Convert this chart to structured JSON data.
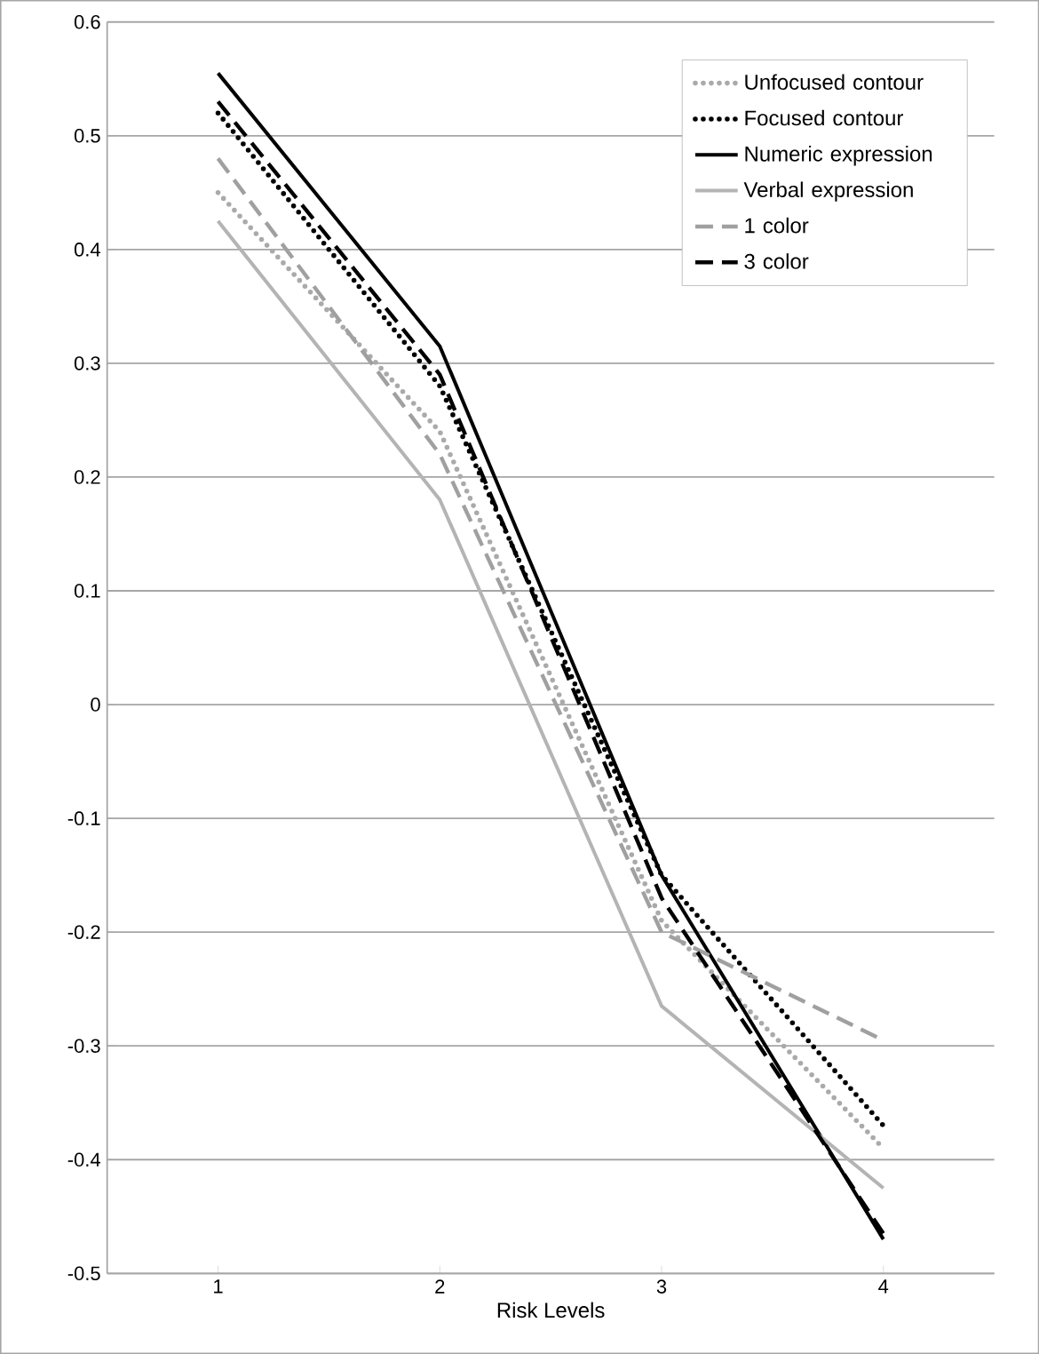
{
  "chart_data": {
    "type": "line",
    "xlabel": "Risk Levels",
    "categories": [
      "1",
      "2",
      "3",
      "4"
    ],
    "series": [
      {
        "name": "Unfocused contour",
        "color": "#aaaaaa",
        "line_style": "dotted",
        "values": [
          0.45,
          0.24,
          -0.19,
          -0.39
        ]
      },
      {
        "name": "Focused contour",
        "color": "#000000",
        "line_style": "dotted",
        "values": [
          0.52,
          0.28,
          -0.15,
          -0.37
        ]
      },
      {
        "name": "Numeric expression",
        "color": "#000000",
        "line_style": "solid",
        "values": [
          0.555,
          0.315,
          -0.15,
          -0.47
        ]
      },
      {
        "name": "Verbal expression",
        "color": "#b4b4b4",
        "line_style": "solid",
        "values": [
          0.425,
          0.18,
          -0.265,
          -0.425
        ]
      },
      {
        "name": "1 color",
        "color": "#a0a0a0",
        "line_style": "dashed",
        "values": [
          0.48,
          0.22,
          -0.2,
          -0.295
        ]
      },
      {
        "name": "3 color",
        "color": "#000000",
        "line_style": "dashed",
        "values": [
          0.53,
          0.29,
          -0.17,
          -0.465
        ]
      }
    ],
    "ylim": [
      -0.5,
      0.6
    ],
    "yticks": [
      -0.5,
      -0.4,
      -0.3,
      -0.2,
      -0.1,
      0,
      0.1,
      0.2,
      0.3,
      0.4,
      0.5,
      0.6
    ],
    "grid": "y",
    "legend": "top right"
  }
}
